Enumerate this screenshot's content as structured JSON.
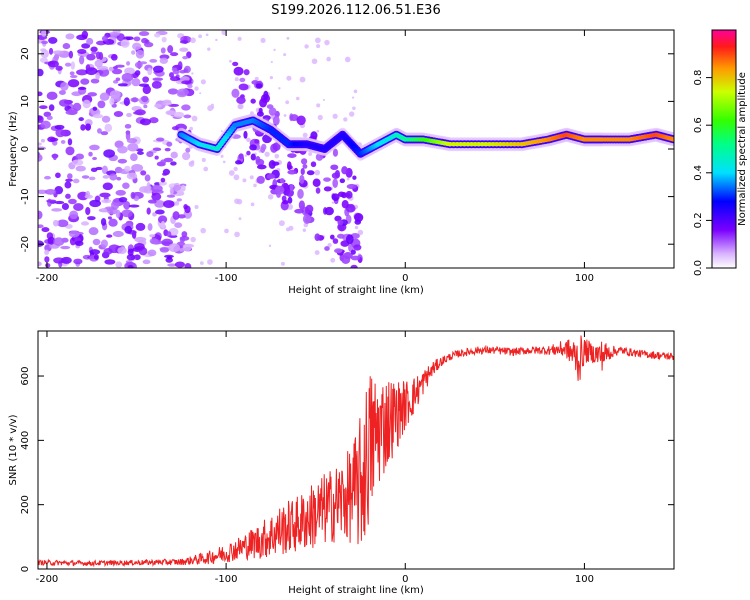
{
  "title": "S199.2026.112.06.51.E36",
  "colors": {
    "snr_line": "#ee2222",
    "frame": "#000000",
    "background": "#ffffff"
  },
  "chart_data": [
    {
      "type": "heatmap",
      "title": "S199.2026.112.06.51.E36",
      "xlabel": "Height of straight line (km)",
      "ylabel": "Frequency (Hz)",
      "xlim": [
        -205,
        150
      ],
      "ylim": [
        -25,
        25
      ],
      "x_ticks": [
        "-200",
        "-100",
        "0",
        "100"
      ],
      "x_tick_values": [
        -200,
        -100,
        0,
        100
      ],
      "y_ticks": [
        "20",
        "10",
        "0",
        "-10",
        "-20"
      ],
      "y_tick_values": [
        20,
        10,
        0,
        -10,
        -20
      ],
      "colorbar": {
        "label": "Normalized spectral amplitude",
        "range": [
          0,
          1
        ],
        "ticks": [
          "0.0",
          "0.2",
          "0.4",
          "0.6",
          "0.8"
        ],
        "tick_values": [
          0.0,
          0.2,
          0.4,
          0.6,
          0.8
        ],
        "colormap": "rainbow (violet to magenta)"
      },
      "carrier_ridge": [
        {
          "x": -125,
          "y": 3,
          "amp": 0.35
        },
        {
          "x": -115,
          "y": 1,
          "amp": 0.4
        },
        {
          "x": -105,
          "y": 0,
          "amp": 0.45
        },
        {
          "x": -95,
          "y": 5,
          "amp": 0.35
        },
        {
          "x": -85,
          "y": 6,
          "amp": 0.35
        },
        {
          "x": -75,
          "y": 4,
          "amp": 0.3
        },
        {
          "x": -65,
          "y": 1,
          "amp": 0.3
        },
        {
          "x": -55,
          "y": 1,
          "amp": 0.25
        },
        {
          "x": -45,
          "y": 0,
          "amp": 0.25
        },
        {
          "x": -35,
          "y": 3,
          "amp": 0.25
        },
        {
          "x": -25,
          "y": -1,
          "amp": 0.3
        },
        {
          "x": -15,
          "y": 1,
          "amp": 0.4
        },
        {
          "x": -5,
          "y": 3,
          "amp": 0.45
        },
        {
          "x": 0,
          "y": 2,
          "amp": 0.5
        },
        {
          "x": 10,
          "y": 2,
          "amp": 0.6
        },
        {
          "x": 25,
          "y": 1,
          "amp": 0.75
        },
        {
          "x": 45,
          "y": 1,
          "amp": 0.75
        },
        {
          "x": 65,
          "y": 1,
          "amp": 0.8
        },
        {
          "x": 80,
          "y": 2,
          "amp": 0.85
        },
        {
          "x": 90,
          "y": 3,
          "amp": 0.9
        },
        {
          "x": 100,
          "y": 2,
          "amp": 0.85
        },
        {
          "x": 110,
          "y": 2,
          "amp": 0.85
        },
        {
          "x": 125,
          "y": 2,
          "amp": 0.85
        },
        {
          "x": 140,
          "y": 3,
          "amp": 0.9
        },
        {
          "x": 150,
          "y": 2,
          "amp": 0.85
        }
      ],
      "noise_region_x": [
        -205,
        -120
      ],
      "scatter_region_x": [
        -120,
        -25
      ]
    },
    {
      "type": "line",
      "xlabel": "Height of straight line (km)",
      "ylabel": "SNR (10 * v/v)",
      "xlim": [
        -205,
        150
      ],
      "ylim": [
        0,
        740
      ],
      "x_ticks": [
        "-200",
        "-100",
        "0",
        "100"
      ],
      "x_tick_values": [
        -200,
        -100,
        0,
        100
      ],
      "y_ticks": [
        "0",
        "200",
        "400",
        "600"
      ],
      "y_tick_values": [
        0,
        200,
        400,
        600
      ],
      "series": [
        {
          "name": "SNR",
          "x": [
            -205,
            -180,
            -150,
            -125,
            -110,
            -100,
            -90,
            -80,
            -70,
            -60,
            -50,
            -40,
            -30,
            -25,
            -22,
            -20,
            -15,
            -10,
            -5,
            0,
            5,
            10,
            15,
            20,
            25,
            30,
            40,
            50,
            60,
            70,
            80,
            90,
            95,
            97,
            100,
            105,
            110,
            115,
            120,
            130,
            140,
            150
          ],
          "values": [
            20,
            18,
            20,
            22,
            35,
            50,
            70,
            90,
            120,
            140,
            170,
            200,
            230,
            260,
            330,
            380,
            430,
            460,
            480,
            510,
            540,
            580,
            620,
            645,
            660,
            670,
            680,
            680,
            675,
            680,
            680,
            685,
            660,
            650,
            680,
            670,
            665,
            675,
            680,
            670,
            665,
            660
          ],
          "spread": [
            8,
            8,
            8,
            10,
            20,
            30,
            40,
            60,
            80,
            90,
            110,
            120,
            150,
            220,
            250,
            250,
            180,
            150,
            110,
            80,
            60,
            40,
            25,
            15,
            12,
            12,
            12,
            12,
            12,
            12,
            14,
            30,
            60,
            80,
            40,
            30,
            50,
            20,
            12,
            12,
            12,
            12
          ]
        }
      ]
    }
  ]
}
